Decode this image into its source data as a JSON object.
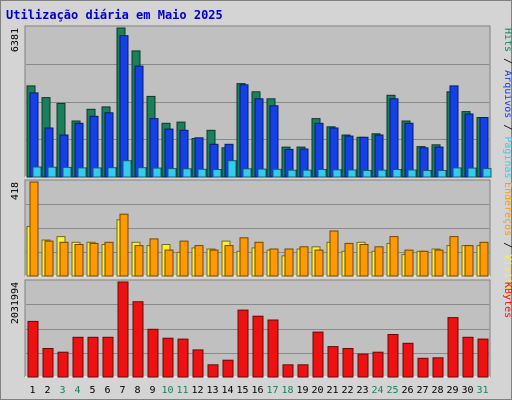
{
  "title": "Utilização diária em Maio 2025",
  "colors": {
    "hits": "#1a7f5a",
    "files": "#1440e8",
    "pages": "#33ccee",
    "visits": "#ffee33",
    "sites": "#ff9900",
    "kbytes": "#ee1111",
    "weekend": "#1a7f5a",
    "weekday": "#000000",
    "title": "#0000cc"
  },
  "chart_data": {
    "type": "bar",
    "categories": [
      "1",
      "2",
      "3",
      "4",
      "5",
      "6",
      "7",
      "8",
      "9",
      "10",
      "11",
      "12",
      "13",
      "14",
      "15",
      "16",
      "17",
      "18",
      "19",
      "20",
      "21",
      "22",
      "23",
      "24",
      "25",
      "26",
      "27",
      "28",
      "29",
      "30",
      "31"
    ],
    "weekend_days": [
      3,
      4,
      10,
      11,
      17,
      18,
      24,
      25,
      31
    ],
    "panels": [
      {
        "id": "traffic",
        "ymax_label": "6381",
        "ymax": 6381,
        "legend": [
          "Hits",
          "Arquivos",
          "Páginas"
        ],
        "series": [
          {
            "name": "Hits",
            "color": "#1a7f5a",
            "values": [
              3900,
              3400,
              3150,
              2400,
              2900,
              3000,
              6381,
              5400,
              3450,
              2300,
              2350,
              1650,
              2000,
              1250,
              4000,
              3650,
              3350,
              1280,
              1280,
              2500,
              2150,
              1800,
              1700,
              1850,
              3500,
              2400,
              1300,
              1380,
              3650,
              2800,
              2550
            ]
          },
          {
            "name": "Arquivos",
            "color": "#1440e8",
            "values": [
              3600,
              2100,
              1800,
              2300,
              2600,
              2750,
              6050,
              4750,
              2500,
              2050,
              2000,
              1680,
              1400,
              1400,
              3950,
              3350,
              3050,
              1180,
              1200,
              2300,
              2100,
              1750,
              1700,
              1800,
              3350,
              2300,
              1250,
              1280,
              3900,
              2700,
              2550
            ]
          },
          {
            "name": "Páginas",
            "color": "#33ccee",
            "values": [
              430,
              420,
              410,
              390,
              390,
              400,
              700,
              400,
              380,
              360,
              350,
              330,
              320,
              700,
              350,
              340,
              330,
              290,
              290,
              320,
              310,
              300,
              280,
              290,
              320,
              300,
              280,
              280,
              390,
              380,
              360
            ]
          }
        ]
      },
      {
        "id": "visitors",
        "ymax_label": "418",
        "ymax": 418,
        "legend": [
          "Endereços",
          "Visitas"
        ],
        "series": [
          {
            "name": "Visitas",
            "color": "#ffee33",
            "values": [
              220,
              160,
              175,
              150,
              150,
              140,
              250,
              150,
              135,
              140,
              105,
              125,
              120,
              155,
              110,
              125,
              115,
              90,
              120,
              130,
              150,
              110,
              150,
              110,
              145,
              95,
              110,
              120,
              135,
              135,
              135
            ]
          },
          {
            "name": "Endereços",
            "color": "#ff9900",
            "values": [
              418,
              155,
              150,
              140,
              145,
              150,
              275,
              135,
              165,
              115,
              155,
              135,
              115,
              135,
              170,
              150,
              120,
              120,
              130,
              115,
              200,
              145,
              140,
              130,
              175,
              115,
              110,
              115,
              175,
              135,
              150
            ]
          }
        ]
      },
      {
        "id": "kbytes",
        "ymax_label": "2031994",
        "ymax": 2031994,
        "legend": [
          "KBytes"
        ],
        "series": [
          {
            "name": "KBytes",
            "color": "#ee1111",
            "values": [
              1190000,
              610000,
              530000,
              850000,
              850000,
              850000,
              2031994,
              1610000,
              1020000,
              830000,
              810000,
              580000,
              260000,
              360000,
              1430000,
              1300000,
              1220000,
              260000,
              260000,
              960000,
              650000,
              610000,
              490000,
              530000,
              910000,
              720000,
              400000,
              410000,
              1270000,
              850000,
              810000
            ]
          }
        ]
      }
    ]
  }
}
